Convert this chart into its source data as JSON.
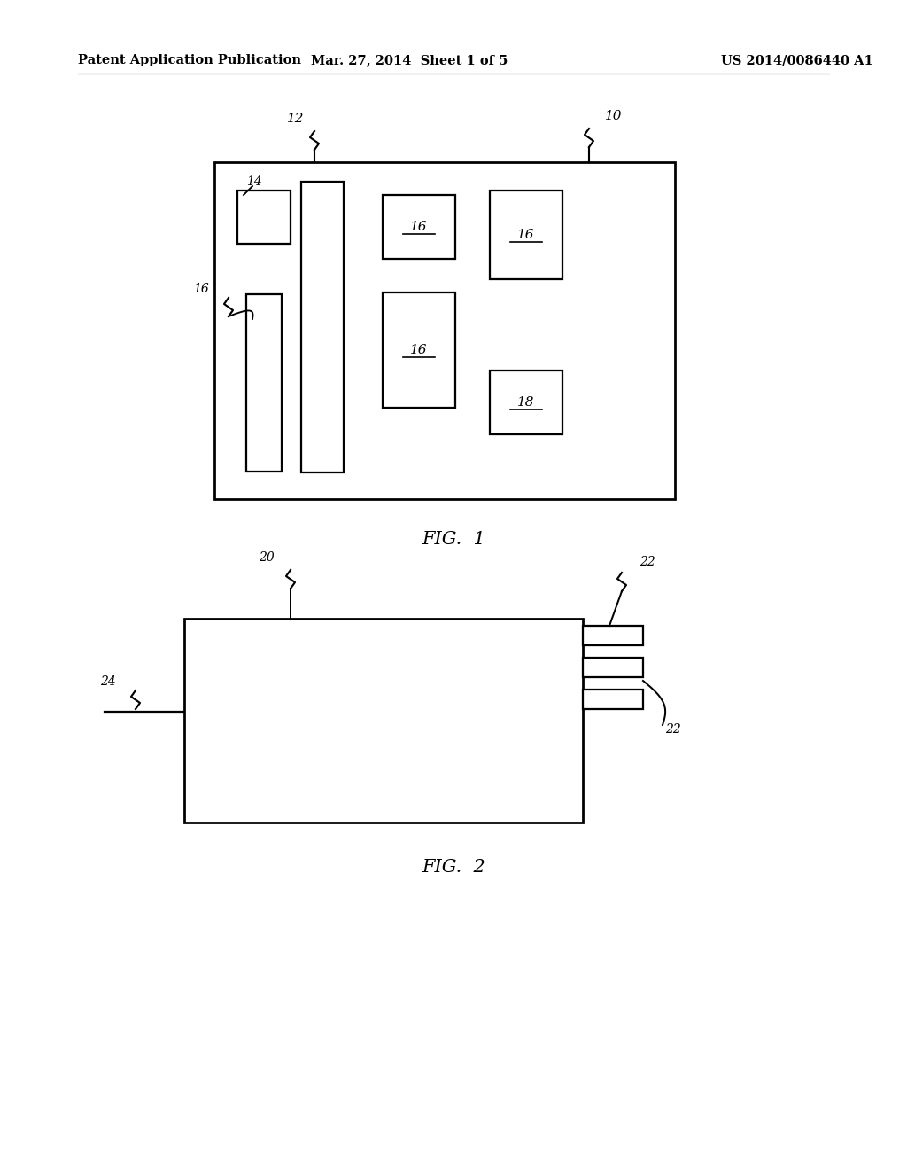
{
  "bg_color": "#ffffff",
  "text_color": "#000000",
  "header_left": "Patent Application Publication",
  "header_mid": "Mar. 27, 2014  Sheet 1 of 5",
  "header_right": "US 2014/0086440 A1",
  "fig1_label": "FIG.  1",
  "fig2_label": "FIG.  2",
  "lw": 1.8
}
